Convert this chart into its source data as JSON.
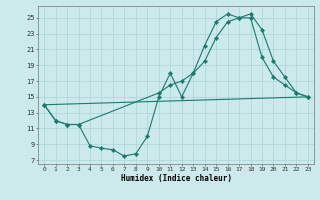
{
  "xlabel": "Humidex (Indice chaleur)",
  "bg_color": "#cce9eb",
  "line_color": "#1a7a6e",
  "grid_color": "#b0d8dc",
  "xlim": [
    -0.5,
    23.5
  ],
  "ylim": [
    6.5,
    26.5
  ],
  "xticks": [
    0,
    1,
    2,
    3,
    4,
    5,
    6,
    7,
    8,
    9,
    10,
    11,
    12,
    13,
    14,
    15,
    16,
    17,
    18,
    19,
    20,
    21,
    22,
    23
  ],
  "yticks": [
    7,
    9,
    11,
    13,
    15,
    17,
    19,
    21,
    23,
    25
  ],
  "line1_x": [
    0,
    1,
    2,
    3,
    4,
    5,
    6,
    7,
    8,
    9,
    10,
    11,
    12,
    13,
    14,
    15,
    16,
    17,
    18,
    19,
    20,
    21,
    22,
    23
  ],
  "line1_y": [
    14.0,
    12.0,
    11.5,
    11.5,
    8.8,
    8.5,
    8.3,
    7.5,
    7.8,
    10.0,
    15.0,
    18.0,
    15.0,
    18.0,
    21.5,
    24.5,
    25.5,
    25.0,
    25.0,
    20.0,
    17.5,
    16.5,
    15.5,
    15.0
  ],
  "line2_x": [
    0,
    1,
    2,
    3,
    10,
    11,
    12,
    13,
    14,
    15,
    16,
    17,
    18,
    19,
    20,
    21,
    22,
    23
  ],
  "line2_y": [
    14.0,
    12.0,
    11.5,
    11.5,
    15.5,
    16.5,
    17.0,
    18.0,
    19.5,
    22.5,
    24.5,
    25.0,
    25.5,
    23.5,
    19.5,
    17.5,
    15.5,
    15.0
  ],
  "line3_x": [
    0,
    23
  ],
  "line3_y": [
    14.0,
    15.0
  ]
}
